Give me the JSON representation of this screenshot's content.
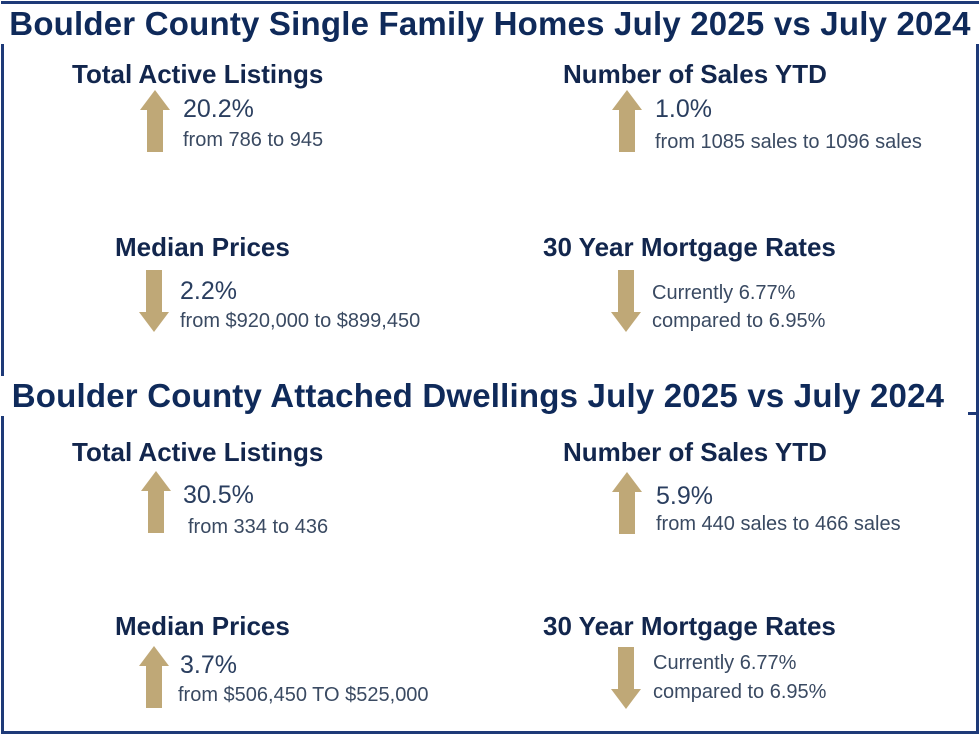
{
  "sections": [
    {
      "title": "Boulder County Single Family Homes July 2025 vs July 2024",
      "stats": [
        {
          "heading": "Total Active Listings",
          "direction": "up",
          "pct": "20.2%",
          "detail": "from 786 to 945"
        },
        {
          "heading": "Number of Sales YTD",
          "direction": "up",
          "pct": "1.0%",
          "detail": "from 1085 sales to 1096 sales"
        },
        {
          "heading": "Median Prices",
          "direction": "down",
          "pct": "2.2%",
          "detail": "from $920,000 to $899,450"
        },
        {
          "heading": "30 Year Mortgage Rates",
          "direction": "down",
          "line1": "Currently 6.77%",
          "line2": "compared to 6.95%"
        }
      ]
    },
    {
      "title": "Boulder County Attached Dwellings July 2025 vs July 2024",
      "stats": [
        {
          "heading": "Total Active Listings",
          "direction": "up",
          "pct": "30.5%",
          "detail": "from 334 to 436"
        },
        {
          "heading": "Number of Sales YTD",
          "direction": "up",
          "pct": "5.9%",
          "detail": "from 440 sales to 466 sales"
        },
        {
          "heading": "Median Prices",
          "direction": "up",
          "pct": "3.7%",
          "detail": "from $506,450 TO $525,000"
        },
        {
          "heading": "30 Year Mortgage Rates",
          "direction": "down",
          "line1": "Currently 6.77%",
          "line2": "compared to 6.95%"
        }
      ]
    }
  ],
  "colors": {
    "navy": "#1e3a78",
    "arrow": "#bfa877",
    "heading": "#12264d"
  }
}
